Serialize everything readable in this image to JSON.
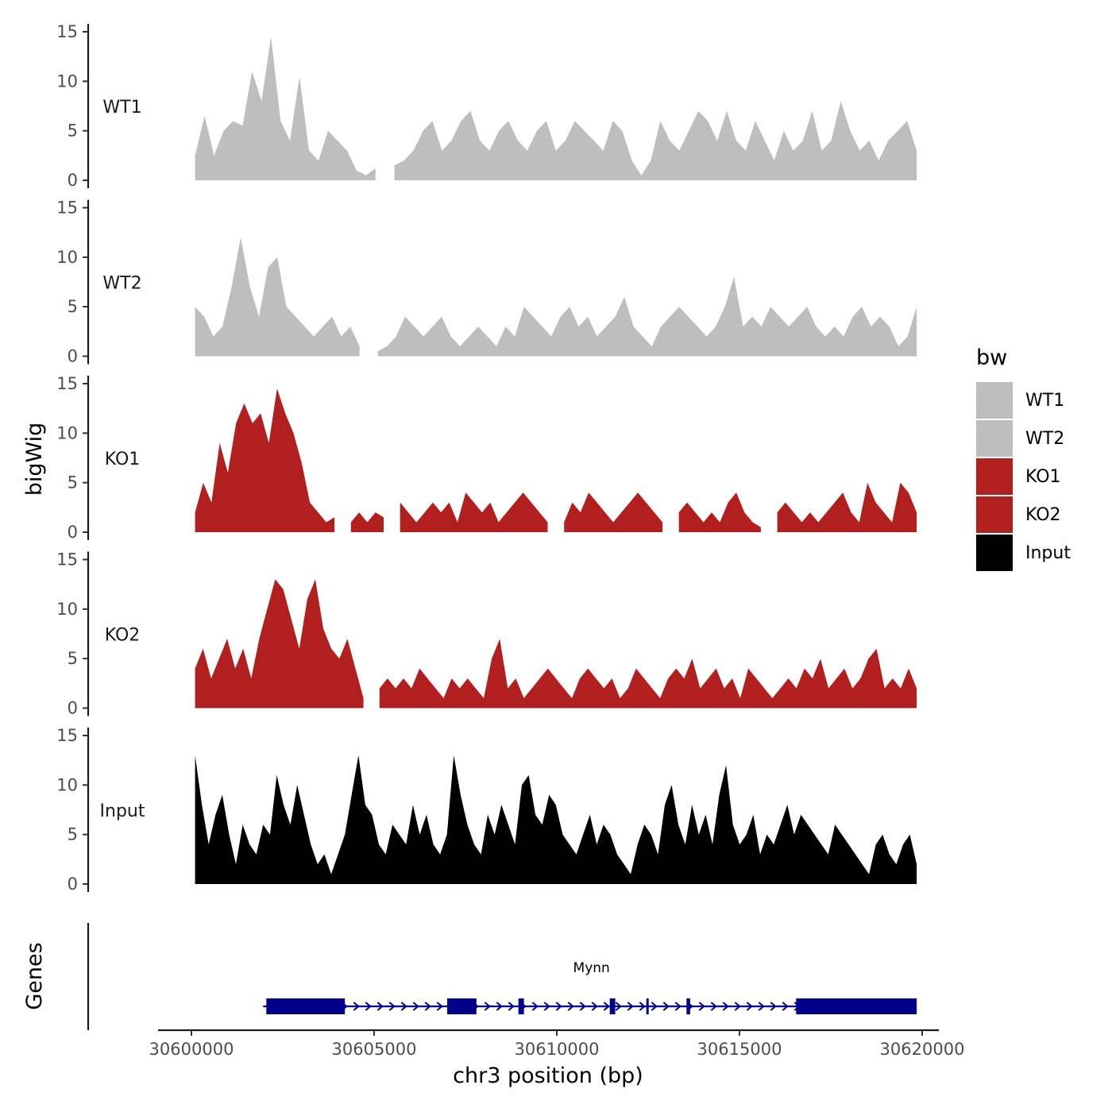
{
  "chart_data": {
    "type": "area",
    "y_axis_title": "bigWig",
    "x_axis_title": "chr3 position (bp)",
    "genes_axis_title": "Genes",
    "legend": {
      "title": "bw",
      "entries": [
        {
          "label": "WT1",
          "color": "#bebebe"
        },
        {
          "label": "WT2",
          "color": "#bebebe"
        },
        {
          "label": "KO1",
          "color": "#b21f1f"
        },
        {
          "label": "KO2",
          "color": "#b21f1f"
        },
        {
          "label": "Input",
          "color": "#000000"
        }
      ]
    },
    "x_range": [
      30600000,
      30620000
    ],
    "x_ticks": [
      30600000,
      30605000,
      30610000,
      30615000,
      30620000
    ],
    "x_tick_labels": [
      "30600000",
      "30605000",
      "30610000",
      "30615000",
      "30620000"
    ],
    "y_range": [
      0,
      15
    ],
    "y_ticks": [
      0,
      5,
      10,
      15
    ],
    "y_tick_labels": [
      "0",
      "5",
      "10",
      "15"
    ],
    "track_x_start": 30600100,
    "track_x_end": 30619850,
    "series": [
      {
        "name": "WT1",
        "color": "#bebebe",
        "values": [
          2.5,
          6.5,
          2.5,
          5,
          6,
          5.5,
          11,
          8,
          14.5,
          6,
          4,
          10.5,
          3,
          2,
          5,
          4,
          3,
          1,
          0.5,
          1.2,
          null,
          1.5,
          2,
          3,
          5,
          6,
          3,
          4,
          6,
          7,
          4,
          3,
          5,
          6,
          4,
          3,
          5,
          6,
          3,
          4,
          6,
          5,
          4,
          3,
          6,
          5,
          2,
          0.5,
          2,
          6,
          4,
          3,
          5,
          7,
          6,
          4,
          7,
          4,
          3,
          6,
          4,
          2,
          5,
          3,
          4,
          7,
          3,
          4,
          8,
          5,
          3,
          4,
          2,
          4,
          5,
          6,
          3
        ]
      },
      {
        "name": "WT2",
        "color": "#bebebe",
        "values": [
          5,
          4,
          2,
          3,
          7,
          12,
          7,
          4,
          9,
          10,
          5,
          4,
          3,
          2,
          3,
          4,
          2,
          3,
          1,
          null,
          0.5,
          1,
          2,
          4,
          3,
          2,
          3,
          4,
          2,
          1,
          2,
          3,
          2,
          1,
          3,
          2,
          5,
          4,
          3,
          2,
          4,
          5,
          3,
          4,
          2,
          3,
          4,
          6,
          3,
          2,
          1,
          3,
          4,
          5,
          4,
          3,
          2,
          3,
          5,
          8,
          3,
          4,
          3,
          5,
          4,
          3,
          4,
          5,
          3,
          2,
          3,
          2,
          4,
          5,
          3,
          4,
          3,
          1,
          2,
          5
        ]
      },
      {
        "name": "KO1",
        "color": "#b21f1f",
        "values": [
          2,
          5,
          3,
          9,
          6,
          11,
          13,
          11,
          12,
          9,
          14.5,
          12,
          10,
          7,
          3,
          2,
          1,
          1.5,
          null,
          1,
          2,
          1,
          2,
          1.5,
          null,
          3,
          2,
          1,
          2,
          3,
          2,
          3,
          1,
          4,
          3,
          2,
          3,
          1,
          2,
          3,
          4,
          3,
          2,
          1,
          null,
          1,
          3,
          2,
          4,
          3,
          2,
          1,
          2,
          3,
          4,
          3,
          2,
          1,
          null,
          2,
          3,
          2,
          1,
          2,
          1,
          3,
          4,
          2,
          1,
          0.5,
          null,
          2,
          3,
          2,
          1,
          2,
          1,
          2,
          3,
          4,
          2,
          1,
          5,
          3,
          2,
          1,
          5,
          4,
          2
        ]
      },
      {
        "name": "KO2",
        "color": "#b21f1f",
        "values": [
          4,
          6,
          3,
          5,
          7,
          4,
          6,
          3,
          7,
          10,
          13,
          12,
          9,
          6,
          11,
          13,
          8,
          6,
          5,
          7,
          4,
          1,
          null,
          2,
          3,
          2,
          3,
          2,
          4,
          3,
          2,
          1,
          3,
          2,
          3,
          2,
          1,
          5,
          7,
          2,
          3,
          1,
          2,
          3,
          4,
          3,
          2,
          1,
          3,
          4,
          3,
          2,
          3,
          1,
          2,
          4,
          3,
          2,
          1,
          3,
          4,
          3,
          5,
          2,
          3,
          4,
          2,
          3,
          1,
          4,
          3,
          2,
          1,
          2,
          3,
          2,
          4,
          3,
          5,
          2,
          3,
          4,
          2,
          3,
          5,
          6,
          2,
          3,
          2,
          4,
          2
        ]
      },
      {
        "name": "Input",
        "color": "#000000",
        "values": [
          13,
          8,
          4,
          7,
          9,
          5,
          2,
          6,
          4,
          3,
          6,
          5,
          11,
          8,
          6,
          10,
          7,
          4,
          2,
          3,
          1,
          3,
          5,
          9,
          13,
          8,
          7,
          4,
          3,
          6,
          5,
          4,
          8,
          5,
          7,
          4,
          3,
          5,
          13,
          9,
          6,
          4,
          3,
          7,
          5,
          8,
          6,
          4,
          10,
          11,
          7,
          6,
          9,
          8,
          5,
          4,
          3,
          5,
          7,
          4,
          6,
          5,
          3,
          2,
          1,
          4,
          6,
          5,
          3,
          8,
          10,
          6,
          4,
          8,
          5,
          7,
          4,
          9,
          12,
          6,
          4,
          5,
          7,
          3,
          5,
          4,
          6,
          8,
          5,
          7,
          6,
          5,
          4,
          3,
          6,
          5,
          4,
          3,
          2,
          1,
          4,
          5,
          3,
          2,
          4,
          5,
          2
        ]
      }
    ],
    "gene": {
      "name": "Mynn",
      "color": "#00008b",
      "start": 30602050,
      "end": 30619850,
      "strand": "+",
      "exons": [
        [
          30602050,
          30604200
        ],
        [
          30607000,
          30607800
        ],
        [
          30608950,
          30609100
        ],
        [
          30611450,
          30611600
        ],
        [
          30612450,
          30612500
        ],
        [
          30613550,
          30613650
        ],
        [
          30616550,
          30619850
        ]
      ]
    }
  }
}
